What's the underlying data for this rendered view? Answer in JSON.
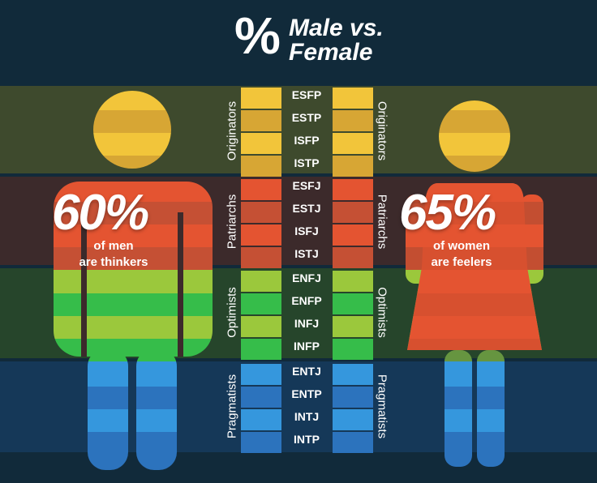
{
  "title": {
    "symbol": "%",
    "line1": "Male vs.",
    "line2": "Female"
  },
  "groups": [
    {
      "name": "Originators",
      "band_color": "#3e4a2d",
      "types": [
        "ESFP",
        "ESTP",
        "ISFP",
        "ISTP"
      ],
      "swatches": [
        "#f2c53a",
        "#d7a634"
      ]
    },
    {
      "name": "Patriarchs",
      "band_color": "#3c2a2b",
      "types": [
        "ESFJ",
        "ESTJ",
        "ISFJ",
        "ISTJ"
      ],
      "swatches": [
        "#e45431",
        "#c55034"
      ]
    },
    {
      "name": "Optimists",
      "band_color": "#26452b",
      "types": [
        "ENFJ",
        "ENFP",
        "INFJ",
        "INFP"
      ],
      "swatches": [
        "#9bc83c",
        "#36bd4a"
      ]
    },
    {
      "name": "Pragmatists",
      "band_color": "#153858",
      "types": [
        "ENTJ",
        "ENTP",
        "INTJ",
        "INTP"
      ],
      "swatches": [
        "#3597dd",
        "#2c73bd"
      ]
    }
  ],
  "men": {
    "percent": "60%",
    "caption_line1": "of men",
    "caption_line2": "are thinkers"
  },
  "women": {
    "percent": "65%",
    "caption_line1": "of women",
    "caption_line2": "are feelers"
  }
}
